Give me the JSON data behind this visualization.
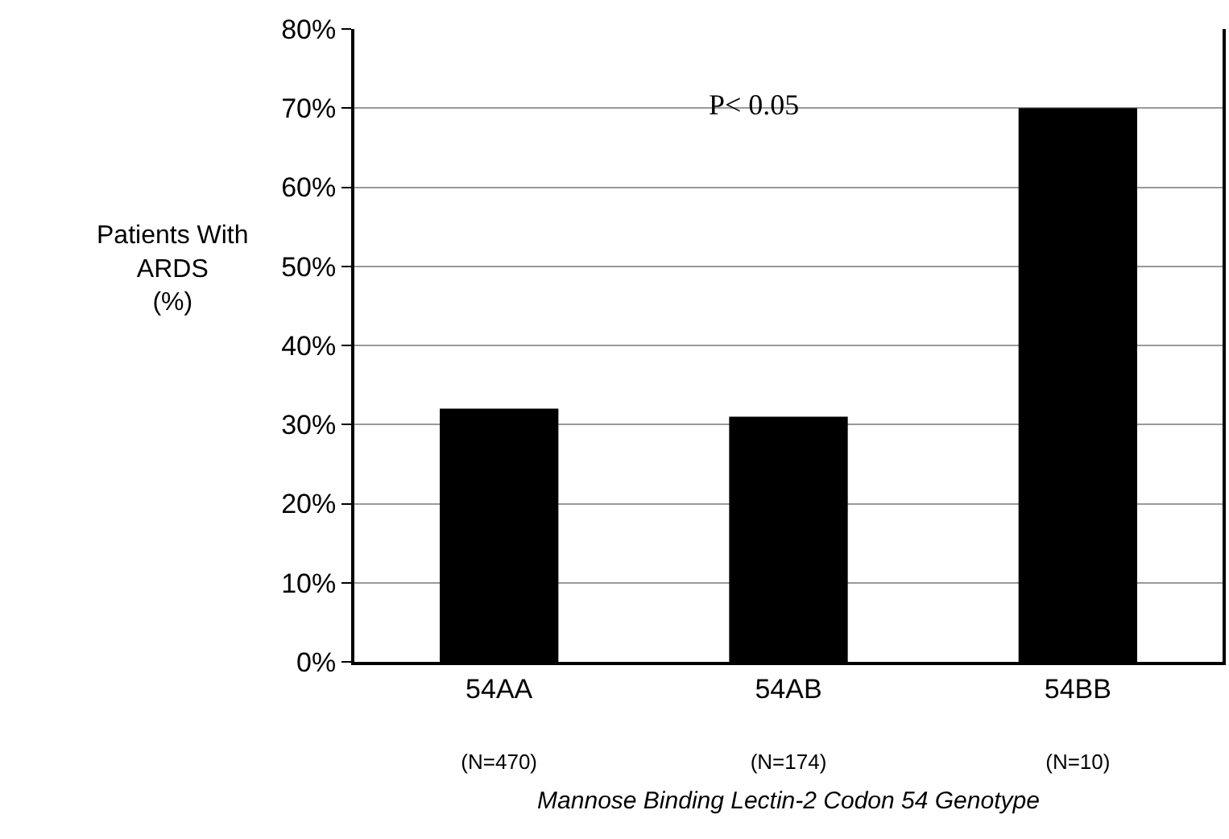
{
  "chart_data": {
    "type": "bar",
    "categories": [
      "54AA\n(N=470)",
      "54AB\n(N=174)",
      "54BB\n(N=10)"
    ],
    "values": [
      32,
      31,
      70
    ],
    "color": "#000000",
    "ylabel": "Patients With\nARDS\n(%)",
    "xlabel": "Mannose Binding Lectin-2 Codon 54 Genotype",
    "ylim": [
      0,
      80
    ],
    "yticks": [
      {
        "value": 0,
        "label": "0%"
      },
      {
        "value": 10,
        "label": "10%"
      },
      {
        "value": 20,
        "label": "20%"
      },
      {
        "value": 30,
        "label": "30%"
      },
      {
        "value": 40,
        "label": "40%"
      },
      {
        "value": 50,
        "label": "50%"
      },
      {
        "value": 60,
        "label": "60%"
      },
      {
        "value": 70,
        "label": "70%"
      },
      {
        "value": 80,
        "label": "80%"
      }
    ],
    "grid": "y",
    "annotations": [
      "P< 0.05"
    ]
  }
}
